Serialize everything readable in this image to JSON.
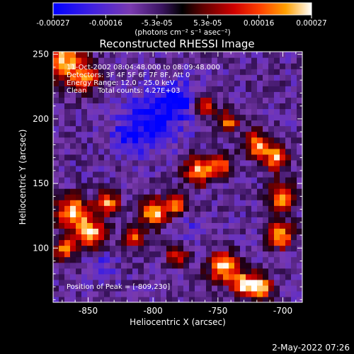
{
  "colorbar": {
    "tick_labels": [
      "-0.00027",
      "-0.00016",
      "-5.3e-05",
      "5.3e-05",
      "0.00016",
      "0.00027"
    ],
    "tick_values": [
      -0.00027,
      -0.00016,
      -5.3e-05,
      5.3e-05,
      0.00016,
      0.00027
    ],
    "range": [
      -0.00027,
      0.00027
    ],
    "units_label": "(photons cm⁻² s⁻¹ asec⁻²)"
  },
  "info_lines": {
    "time": "11-Oct-2002 08:04:48.000 to 08:09:48.000",
    "detectors": "Detectors: 3F 4F 5F 6F 7F 8F, Att 0",
    "energy": "Energy Range: 12.0 - 25.0 keV",
    "clean": "Clean     Total counts: 4.27E+03"
  },
  "peak_label": "Position of Peak = [-809,230]",
  "footer_timestamp": "2-May-2022 07:26",
  "colors": {
    "background": "#000000",
    "foreground": "#ffffff",
    "colormap": [
      "#0000ff",
      "#4a1fd0",
      "#7a3ab0",
      "#3a1460",
      "#000000",
      "#5a0000",
      "#c00000",
      "#ff3000",
      "#ff9000",
      "#ffd040",
      "#ffffff"
    ]
  },
  "chart_data": {
    "type": "heatmap",
    "title": "Reconstructed RHESSI Image",
    "xlabel": "Heliocentric X (arcsec)",
    "ylabel": "Heliocentric Y (arcsec)",
    "xlim": [
      -877,
      -685
    ],
    "ylim": [
      58,
      252
    ],
    "x_ticks": [
      -850,
      -800,
      -750,
      -700
    ],
    "x_tick_labels": [
      "-850",
      "-800",
      "-750",
      "-700"
    ],
    "y_ticks": [
      100,
      150,
      200,
      250
    ],
    "y_tick_labels": [
      "100",
      "150",
      "200",
      "250"
    ],
    "peak_position": [
      -809,
      230
    ],
    "value_range": [
      -0.00027,
      0.00027
    ],
    "note": "Noisy intensity map; bright (yellow/red) blobs approximated below in data units",
    "blobs": [
      {
        "x": -868,
        "y": 245,
        "r": 14,
        "v": 0.00025
      },
      {
        "x": -852,
        "y": 232,
        "r": 9,
        "v": 0.00018
      },
      {
        "x": -760,
        "y": 210,
        "r": 7,
        "v": 0.00017
      },
      {
        "x": -742,
        "y": 198,
        "r": 8,
        "v": 0.00016
      },
      {
        "x": -862,
        "y": 128,
        "r": 12,
        "v": 0.00027
      },
      {
        "x": -848,
        "y": 112,
        "r": 10,
        "v": 0.00025
      },
      {
        "x": -835,
        "y": 135,
        "r": 8,
        "v": 0.0002
      },
      {
        "x": -868,
        "y": 100,
        "r": 8,
        "v": 0.00019
      },
      {
        "x": -800,
        "y": 128,
        "r": 10,
        "v": 0.00024
      },
      {
        "x": -782,
        "y": 135,
        "r": 8,
        "v": 0.0002
      },
      {
        "x": -765,
        "y": 160,
        "r": 10,
        "v": 0.00022
      },
      {
        "x": -748,
        "y": 165,
        "r": 8,
        "v": 0.0002
      },
      {
        "x": -720,
        "y": 180,
        "r": 9,
        "v": 0.00021
      },
      {
        "x": -705,
        "y": 170,
        "r": 9,
        "v": 0.00022
      },
      {
        "x": -700,
        "y": 140,
        "r": 10,
        "v": 0.00023
      },
      {
        "x": -702,
        "y": 110,
        "r": 9,
        "v": 0.00024
      },
      {
        "x": -745,
        "y": 85,
        "r": 11,
        "v": 0.00026
      },
      {
        "x": -730,
        "y": 72,
        "r": 8,
        "v": 0.00022
      },
      {
        "x": -782,
        "y": 95,
        "r": 7,
        "v": 0.00017
      },
      {
        "x": -718,
        "y": 70,
        "r": 9,
        "v": 0.00025
      },
      {
        "x": -815,
        "y": 108,
        "r": 7,
        "v": 0.00015
      }
    ],
    "dark_regions": [
      {
        "x": -800,
        "y": 200,
        "r": 22,
        "v": -0.00024
      },
      {
        "x": -780,
        "y": 215,
        "r": 14,
        "v": -0.00022
      },
      {
        "x": -820,
        "y": 185,
        "r": 12,
        "v": -0.0002
      },
      {
        "x": -840,
        "y": 85,
        "r": 10,
        "v": -0.00018
      },
      {
        "x": -770,
        "y": 115,
        "r": 9,
        "v": -0.00016
      }
    ]
  }
}
